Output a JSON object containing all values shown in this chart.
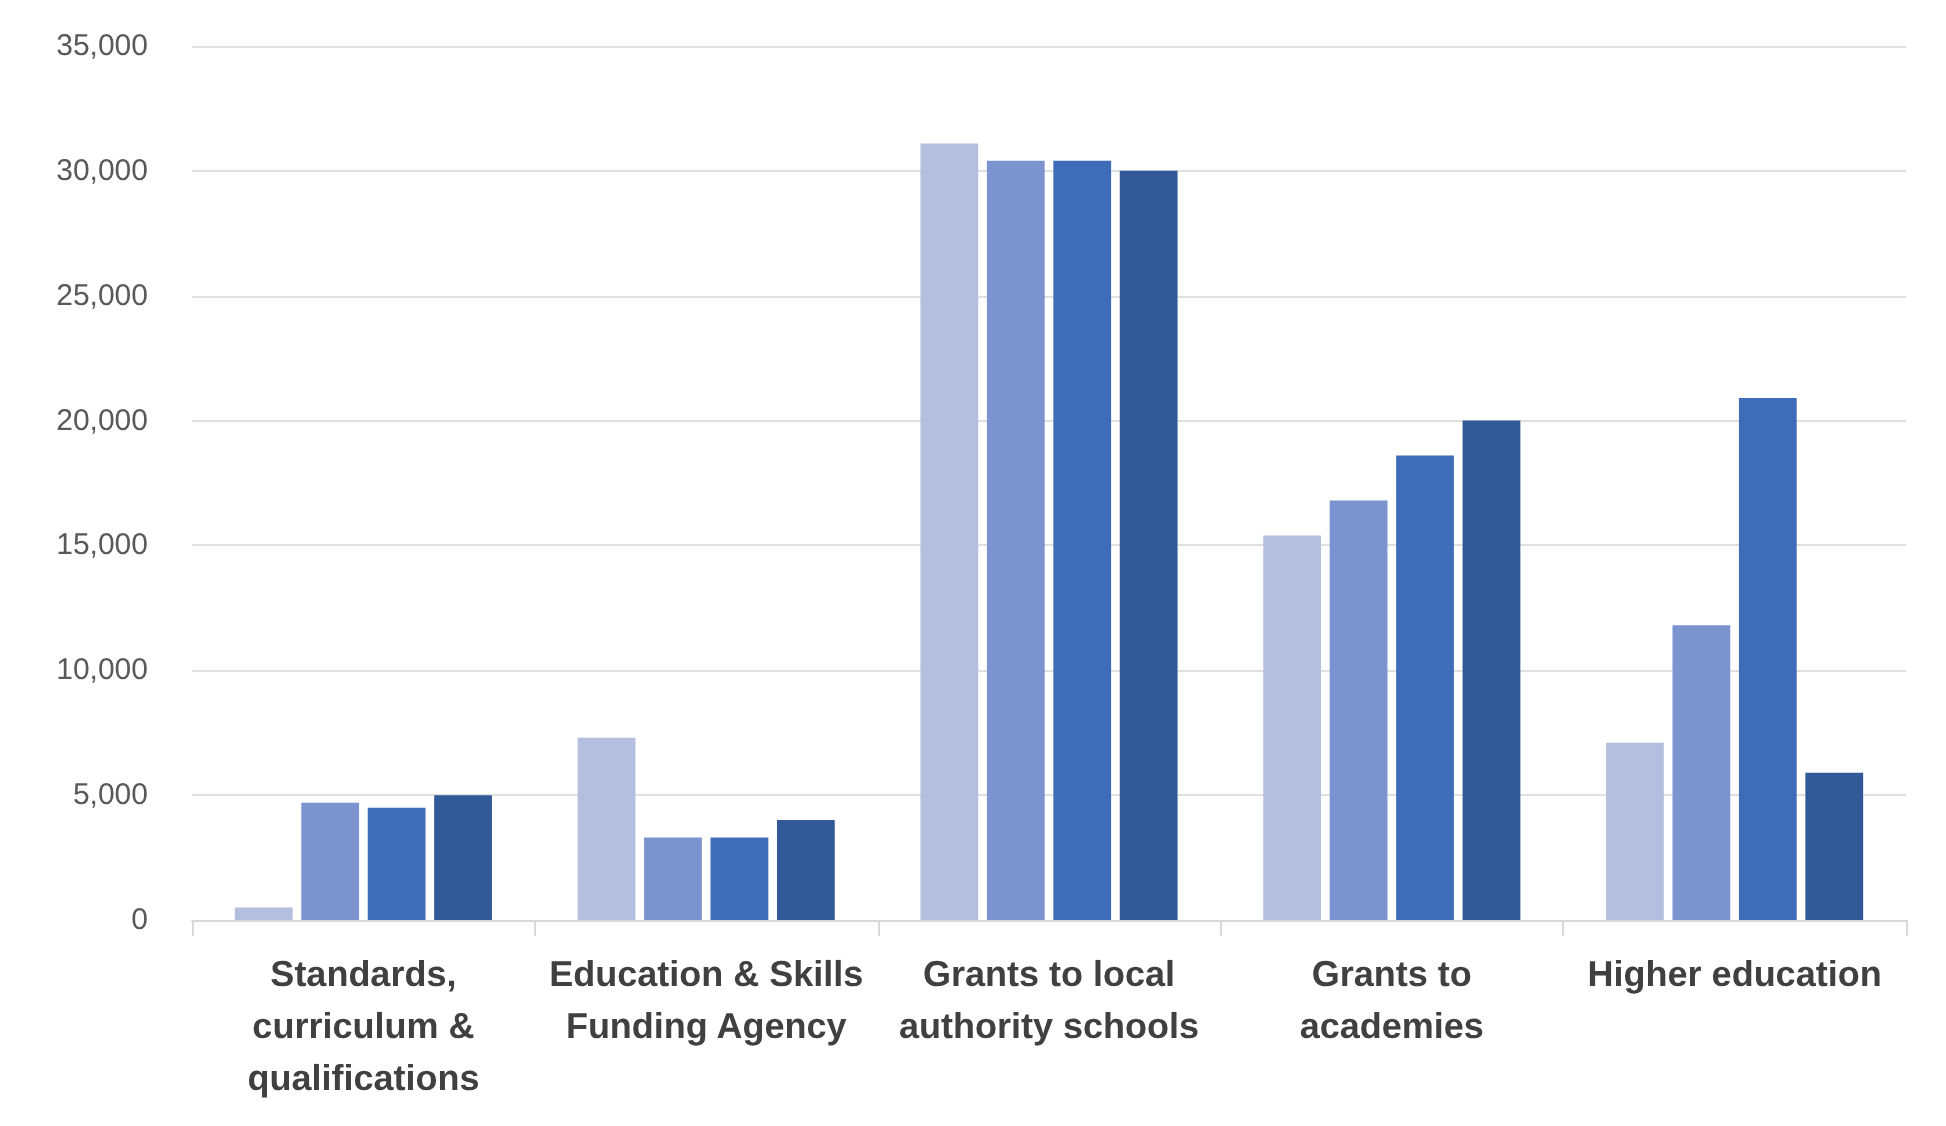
{
  "chart_data": {
    "type": "bar",
    "categories": [
      "Standards, curriculum & qualifications",
      "Education & Skills Funding Agency",
      "Grants to local authority schools",
      "Grants to academies",
      "Higher education"
    ],
    "series": [
      {
        "color": "#b4bfe0",
        "values": [
          500,
          7300,
          31100,
          15400,
          7100
        ]
      },
      {
        "color": "#7b93cf",
        "values": [
          4700,
          3300,
          30400,
          16800,
          11800
        ]
      },
      {
        "color": "#3f6cb9",
        "values": [
          4500,
          3300,
          30400,
          18600,
          20900
        ]
      },
      {
        "color": "#315897",
        "values": [
          5000,
          4000,
          30000,
          20000,
          5900
        ]
      }
    ],
    "ylim": [
      0,
      35000
    ],
    "yticks": [
      0,
      {
        "value": 5000,
        "label": "5,000"
      },
      {
        "value": 10000,
        "label": "10,000"
      },
      {
        "value": 15000,
        "label": "15,000"
      },
      {
        "value": 20000,
        "label": "20,000"
      },
      {
        "value": 25000,
        "label": "25,000"
      },
      {
        "value": 30000,
        "label": "30,000"
      },
      {
        "value": 35000,
        "label": "35,000"
      }
    ],
    "grid": "y"
  }
}
